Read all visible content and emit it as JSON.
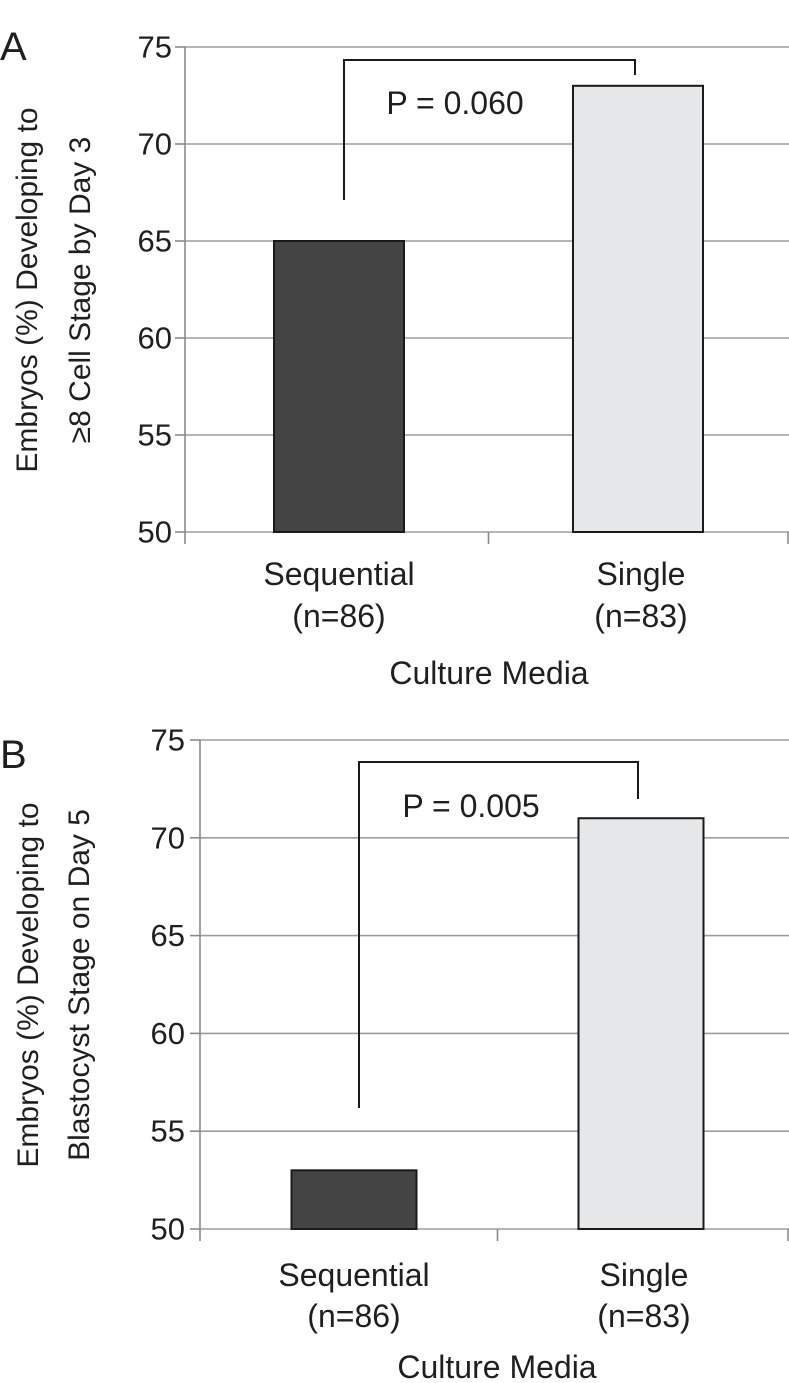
{
  "chart_data": [
    {
      "panel_label": "A",
      "type": "bar",
      "categories": [
        "Sequential",
        "Single"
      ],
      "category_n": [
        "(n=86)",
        "(n=83)"
      ],
      "values": [
        65,
        73
      ],
      "ylabel_lines": [
        "Embryos (%) Developing to",
        "≥8 Cell Stage by Day 3"
      ],
      "xlabel": "Culture Media",
      "ylim": [
        50,
        75
      ],
      "yticks": [
        50,
        55,
        60,
        65,
        70,
        75
      ],
      "grid": true,
      "bar_colors": [
        "#444444",
        "#e6e7e9"
      ],
      "significance": {
        "label": "P = 0.060",
        "from": 0,
        "to": 1
      }
    },
    {
      "panel_label": "B",
      "type": "bar",
      "categories": [
        "Sequential",
        "Single"
      ],
      "category_n": [
        "(n=86)",
        "(n=83)"
      ],
      "values": [
        53,
        71
      ],
      "ylabel_lines": [
        "Embryos (%) Developing to",
        "Blastocyst Stage on Day 5"
      ],
      "xlabel": "Culture Media",
      "ylim": [
        50,
        75
      ],
      "yticks": [
        50,
        55,
        60,
        65,
        70,
        75
      ],
      "grid": true,
      "bar_colors": [
        "#444444",
        "#e6e7e9"
      ],
      "significance": {
        "label": "P = 0.005",
        "from": 0,
        "to": 1
      }
    }
  ]
}
